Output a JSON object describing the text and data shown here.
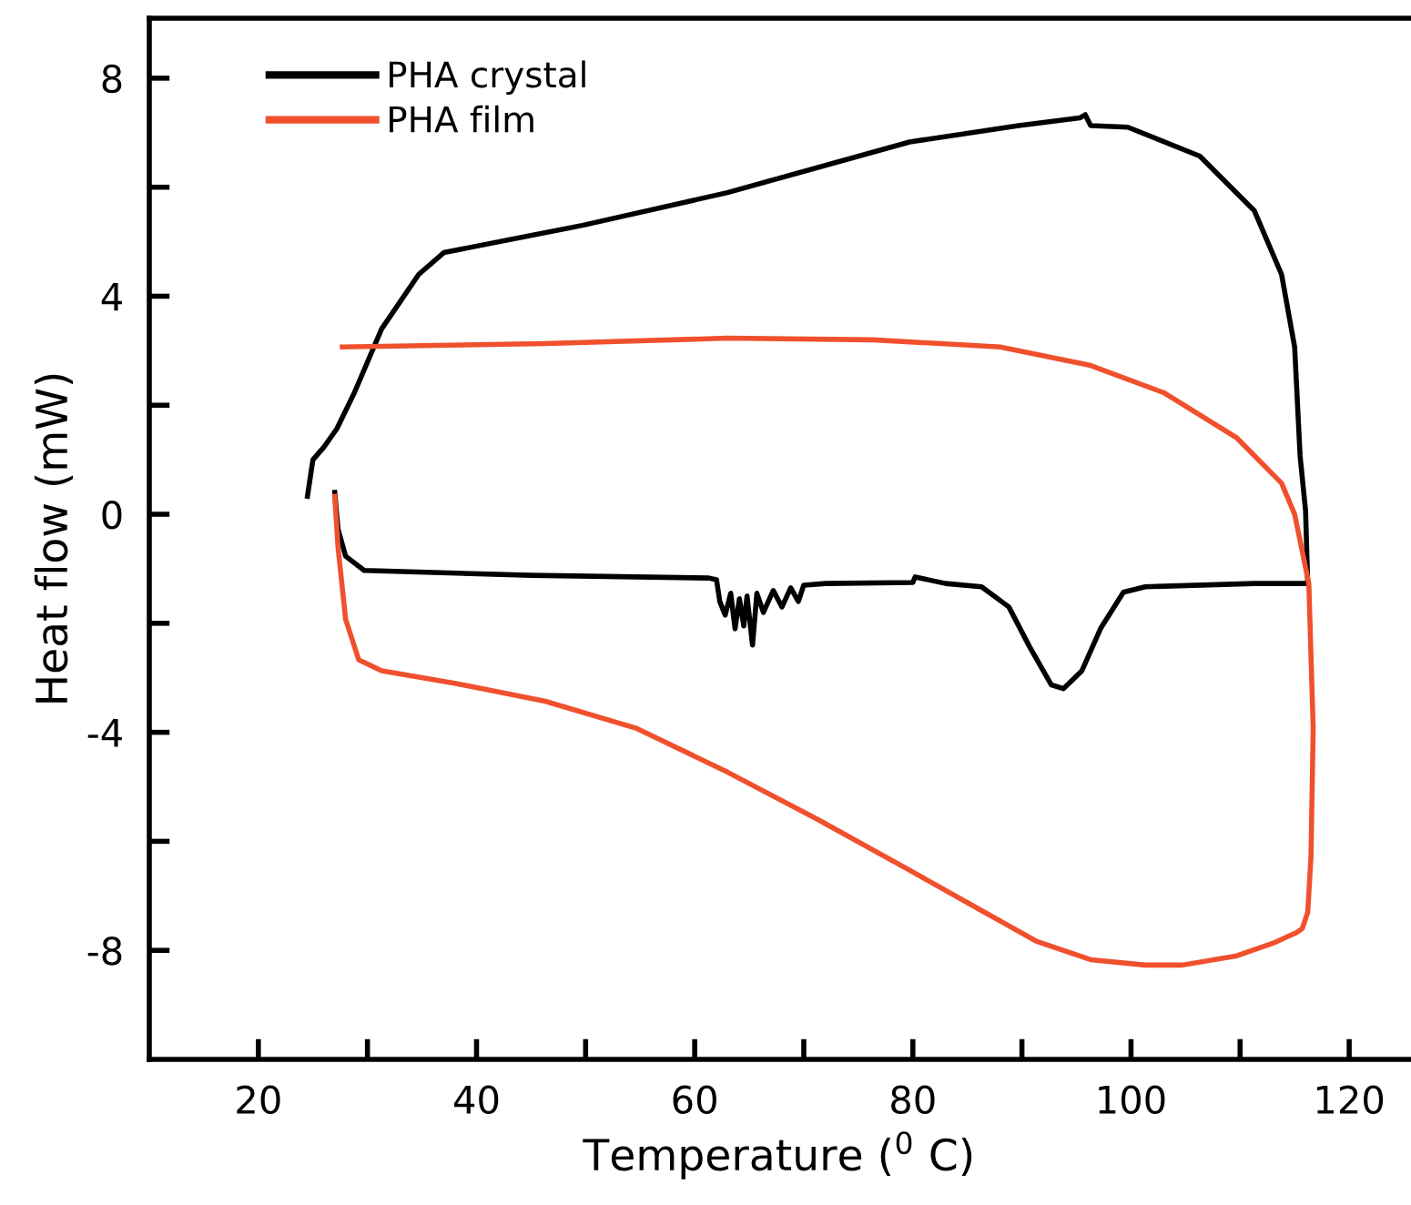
{
  "chart_data": {
    "type": "line",
    "xlabel": "Temperature ($^{0}$ C)",
    "ylabel": "Heat flow (mW)",
    "xlim": [
      10,
      125.5
    ],
    "ylim": [
      -10,
      9.1
    ],
    "xticks": [
      20,
      {
        "value": 30,
        "label": null
      },
      40,
      {
        "value": 50,
        "label": null
      },
      60,
      {
        "value": 70,
        "label": null
      },
      80,
      {
        "value": 90,
        "label": null
      },
      100,
      {
        "value": 110,
        "label": null
      },
      120
    ],
    "yticks": [
      {
        "value": -8,
        "label": "-8"
      },
      {
        "value": -6,
        "label": null
      },
      {
        "value": -4,
        "label": "-4"
      },
      {
        "value": -2,
        "label": null
      },
      0,
      {
        "value": 2,
        "label": null
      },
      4,
      {
        "value": 6,
        "label": null
      },
      8
    ],
    "grid": false,
    "legend": "top left",
    "line_style": "solid",
    "marker": "none",
    "series": [
      {
        "name": "PHA crystal",
        "color": "#000000",
        "x": [
          24.5,
          25,
          26,
          27.2,
          28.8,
          31.3,
          34.7,
          37,
          49.7,
          63,
          79.7,
          89.7,
          95.3,
          95.8,
          96.3,
          99.7,
          106.3,
          111.3,
          113.8,
          115,
          115.5,
          116,
          116.2,
          111.3,
          101.3,
          99.3,
          97.2,
          95.5,
          93.8,
          92.7,
          90.7,
          88.8,
          86.3,
          83,
          80.2,
          80,
          72,
          70,
          69.5,
          68.8,
          68,
          67.2,
          66.3,
          65.7,
          65.3,
          64.8,
          64.5,
          64.1,
          63.7,
          63.3,
          62.8,
          62.3,
          62,
          61.3,
          45,
          29.7,
          28,
          27.3,
          27
        ],
        "values": [
          0.33,
          1.0,
          1.23,
          1.57,
          2.23,
          3.4,
          4.4,
          4.8,
          5.3,
          5.9,
          6.83,
          7.13,
          7.27,
          7.33,
          7.13,
          7.1,
          6.57,
          5.57,
          4.4,
          3.07,
          1.07,
          0.07,
          -1.27,
          -1.27,
          -1.33,
          -1.43,
          -2.1,
          -2.87,
          -3.2,
          -3.13,
          -2.43,
          -1.7,
          -1.33,
          -1.27,
          -1.15,
          -1.25,
          -1.27,
          -1.3,
          -1.6,
          -1.35,
          -1.7,
          -1.4,
          -1.8,
          -1.45,
          -2.4,
          -1.5,
          -2.05,
          -1.55,
          -2.1,
          -1.45,
          -1.85,
          -1.6,
          -1.2,
          -1.17,
          -1.12,
          -1.03,
          -0.77,
          -0.27,
          0.4
        ]
      },
      {
        "name": "PHA film",
        "color": "#f0502d",
        "x": [
          27.7,
          46.3,
          63,
          76.3,
          88,
          96.3,
          103,
          109.7,
          113.8,
          115,
          116.3,
          116.7,
          116.5,
          116.2,
          115.7,
          115.2,
          113,
          109.7,
          104.7,
          101.3,
          96.3,
          91.3,
          86.3,
          79.7,
          71.3,
          63,
          54.7,
          46.3,
          38,
          31.3,
          29.2,
          28,
          27.3,
          27
        ],
        "values": [
          3.07,
          3.13,
          3.23,
          3.2,
          3.07,
          2.73,
          2.23,
          1.4,
          0.57,
          0,
          -1.27,
          -3.93,
          -6.27,
          -7.3,
          -7.6,
          -7.67,
          -7.87,
          -8.1,
          -8.27,
          -8.27,
          -8.17,
          -7.83,
          -7.27,
          -6.53,
          -5.6,
          -4.73,
          -3.93,
          -3.43,
          -3.1,
          -2.87,
          -2.67,
          -1.93,
          -0.6,
          0.33
        ]
      }
    ]
  }
}
